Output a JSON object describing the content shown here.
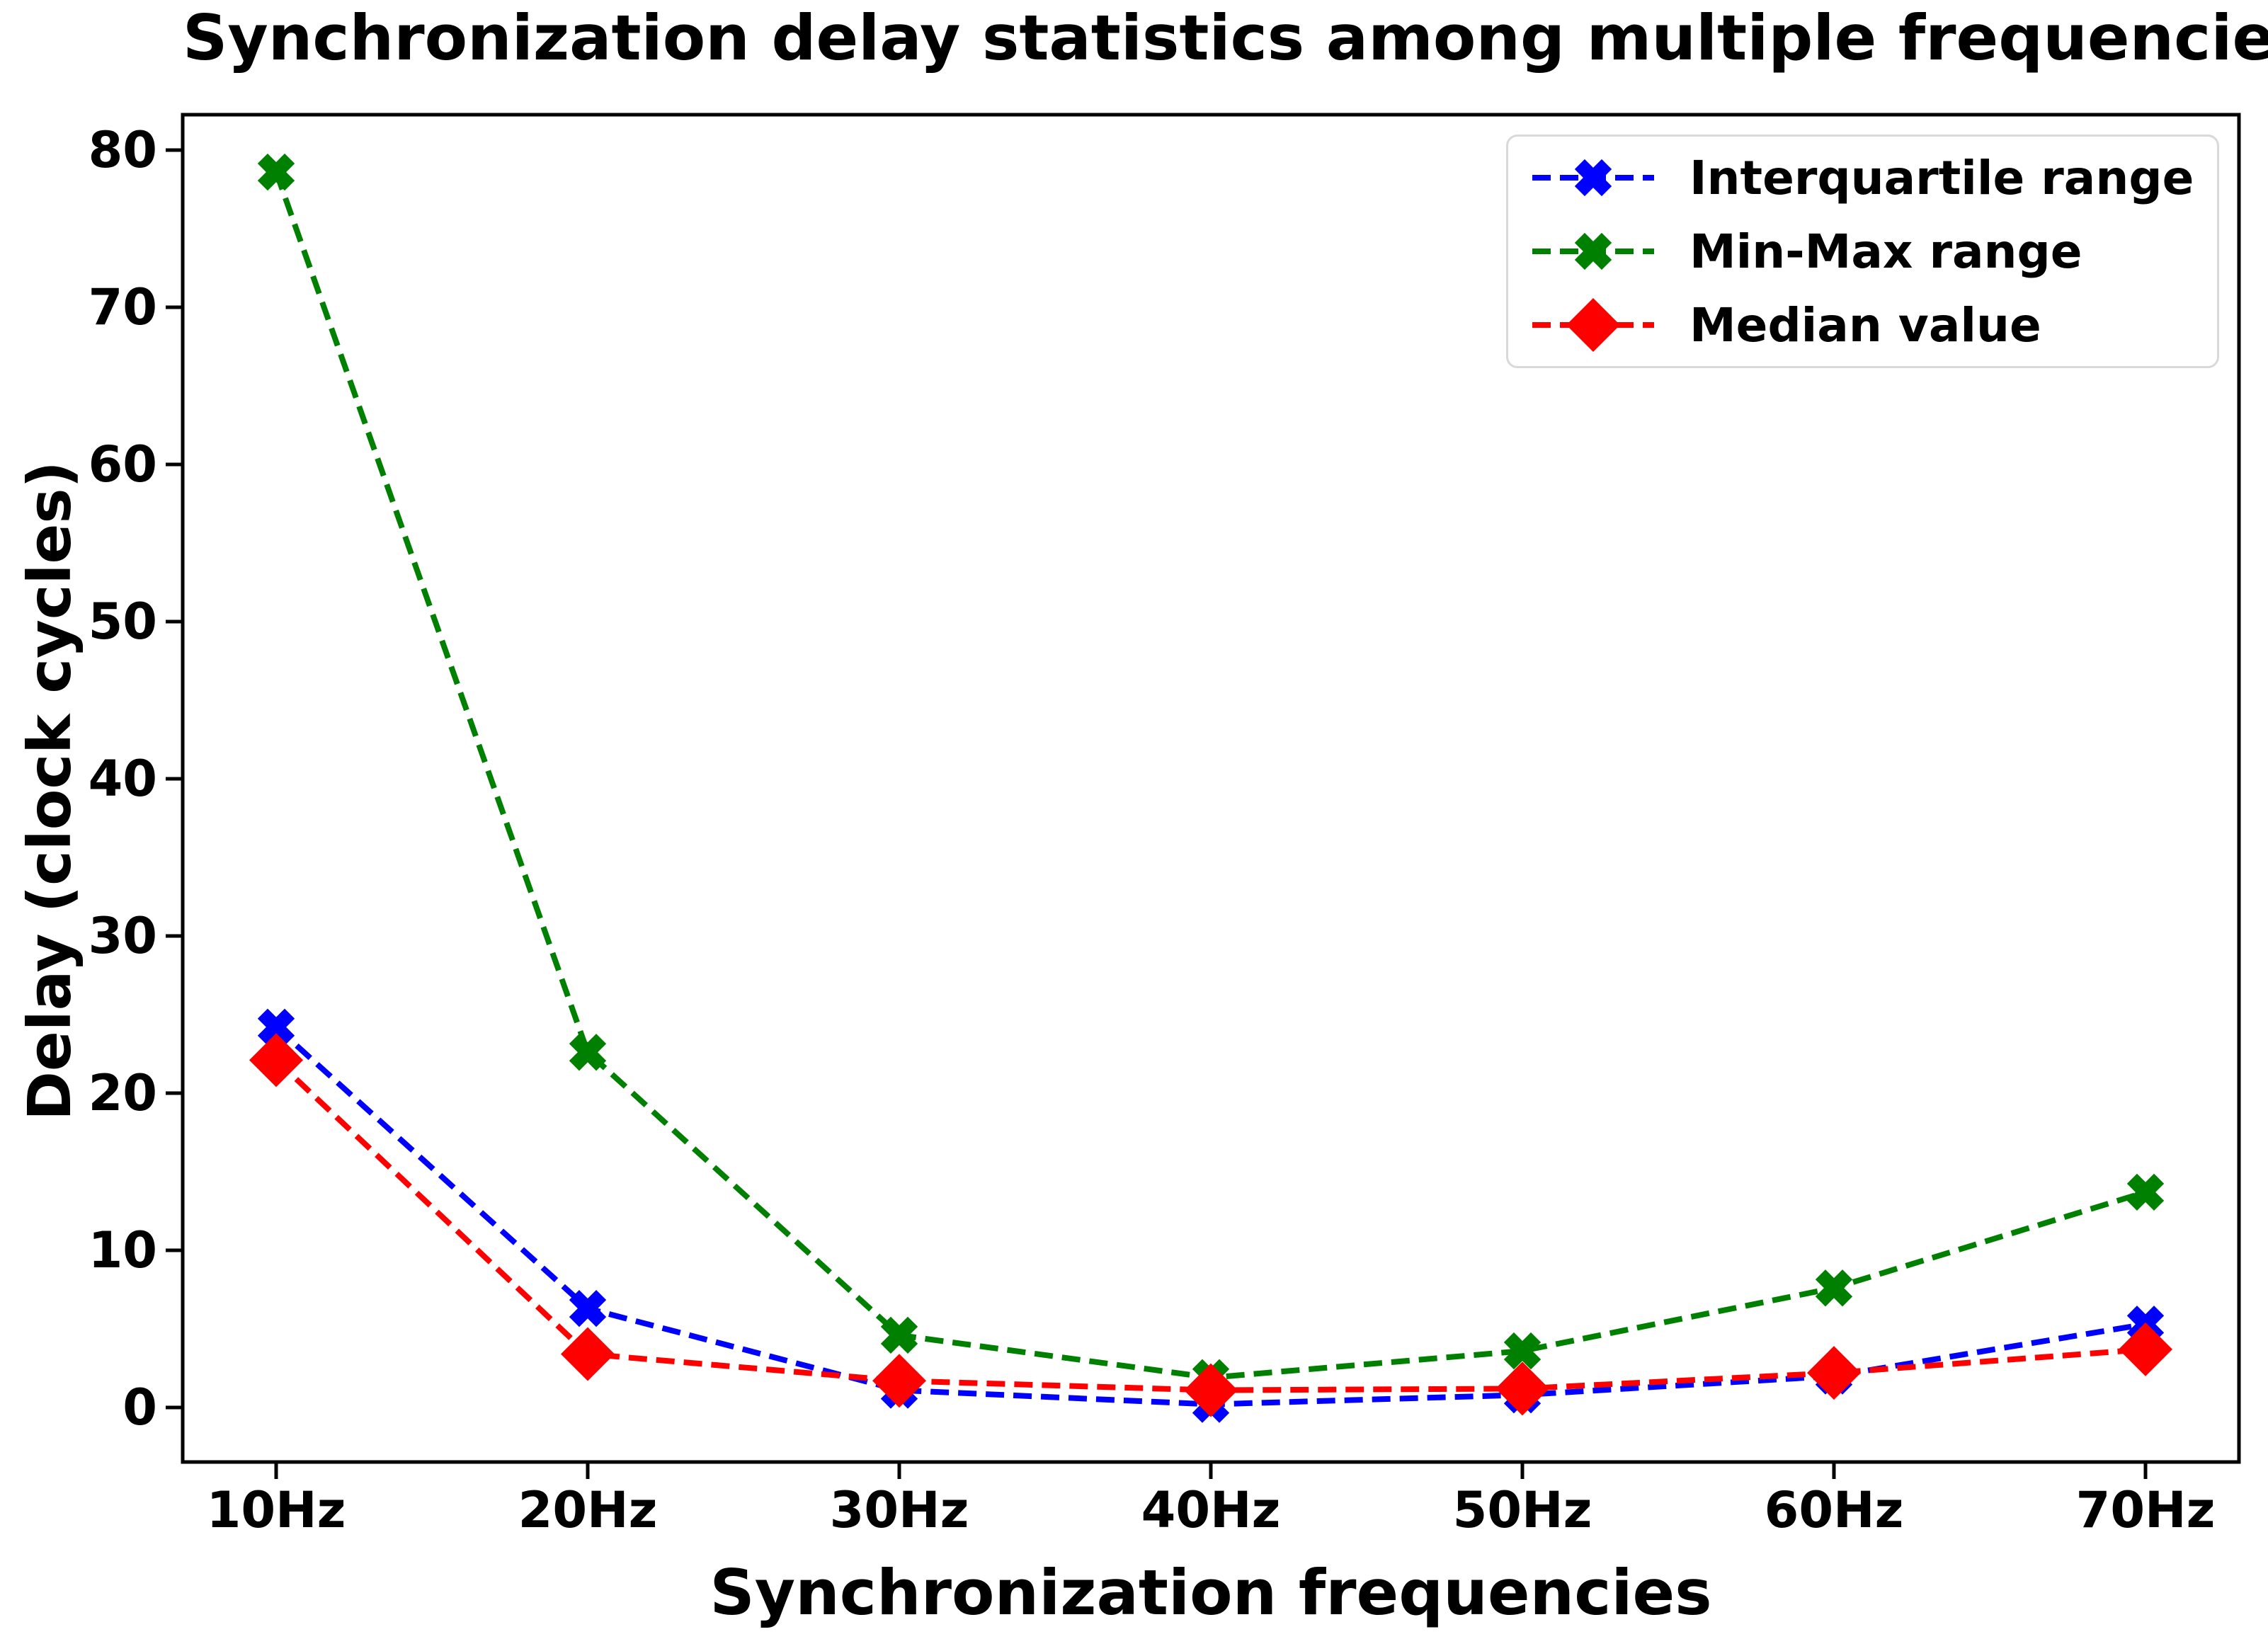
{
  "chart_data": {
    "type": "line",
    "title": "Synchronization delay statistics among multiple frequencies",
    "xlabel": "Synchronization frequencies",
    "ylabel": "Delay (clock cycles)",
    "categories": [
      "10Hz",
      "20Hz",
      "30Hz",
      "40Hz",
      "50Hz",
      "60Hz",
      "70Hz"
    ],
    "yticks": [
      0,
      10,
      20,
      30,
      40,
      50,
      60,
      70,
      80
    ],
    "ylim": [
      -3.5,
      82.3
    ],
    "grid": false,
    "background": "#ffffff",
    "axis_color": "#000000",
    "line_style": "dashed",
    "legend_position": "upper right",
    "series": [
      {
        "name": "Interquartile range",
        "color": "#0000ff",
        "marker": "X",
        "values": [
          24.2,
          6.3,
          1.1,
          0.2,
          0.8,
          2.0,
          5.3
        ]
      },
      {
        "name": "Min-Max range",
        "color": "#008000",
        "marker": "X",
        "values": [
          78.6,
          22.6,
          4.6,
          1.9,
          3.6,
          7.6,
          13.7
        ]
      },
      {
        "name": "Median value",
        "color": "#ff0000",
        "marker": "D",
        "values": [
          22.1,
          3.4,
          1.7,
          1.1,
          1.2,
          2.2,
          3.7
        ]
      }
    ]
  }
}
